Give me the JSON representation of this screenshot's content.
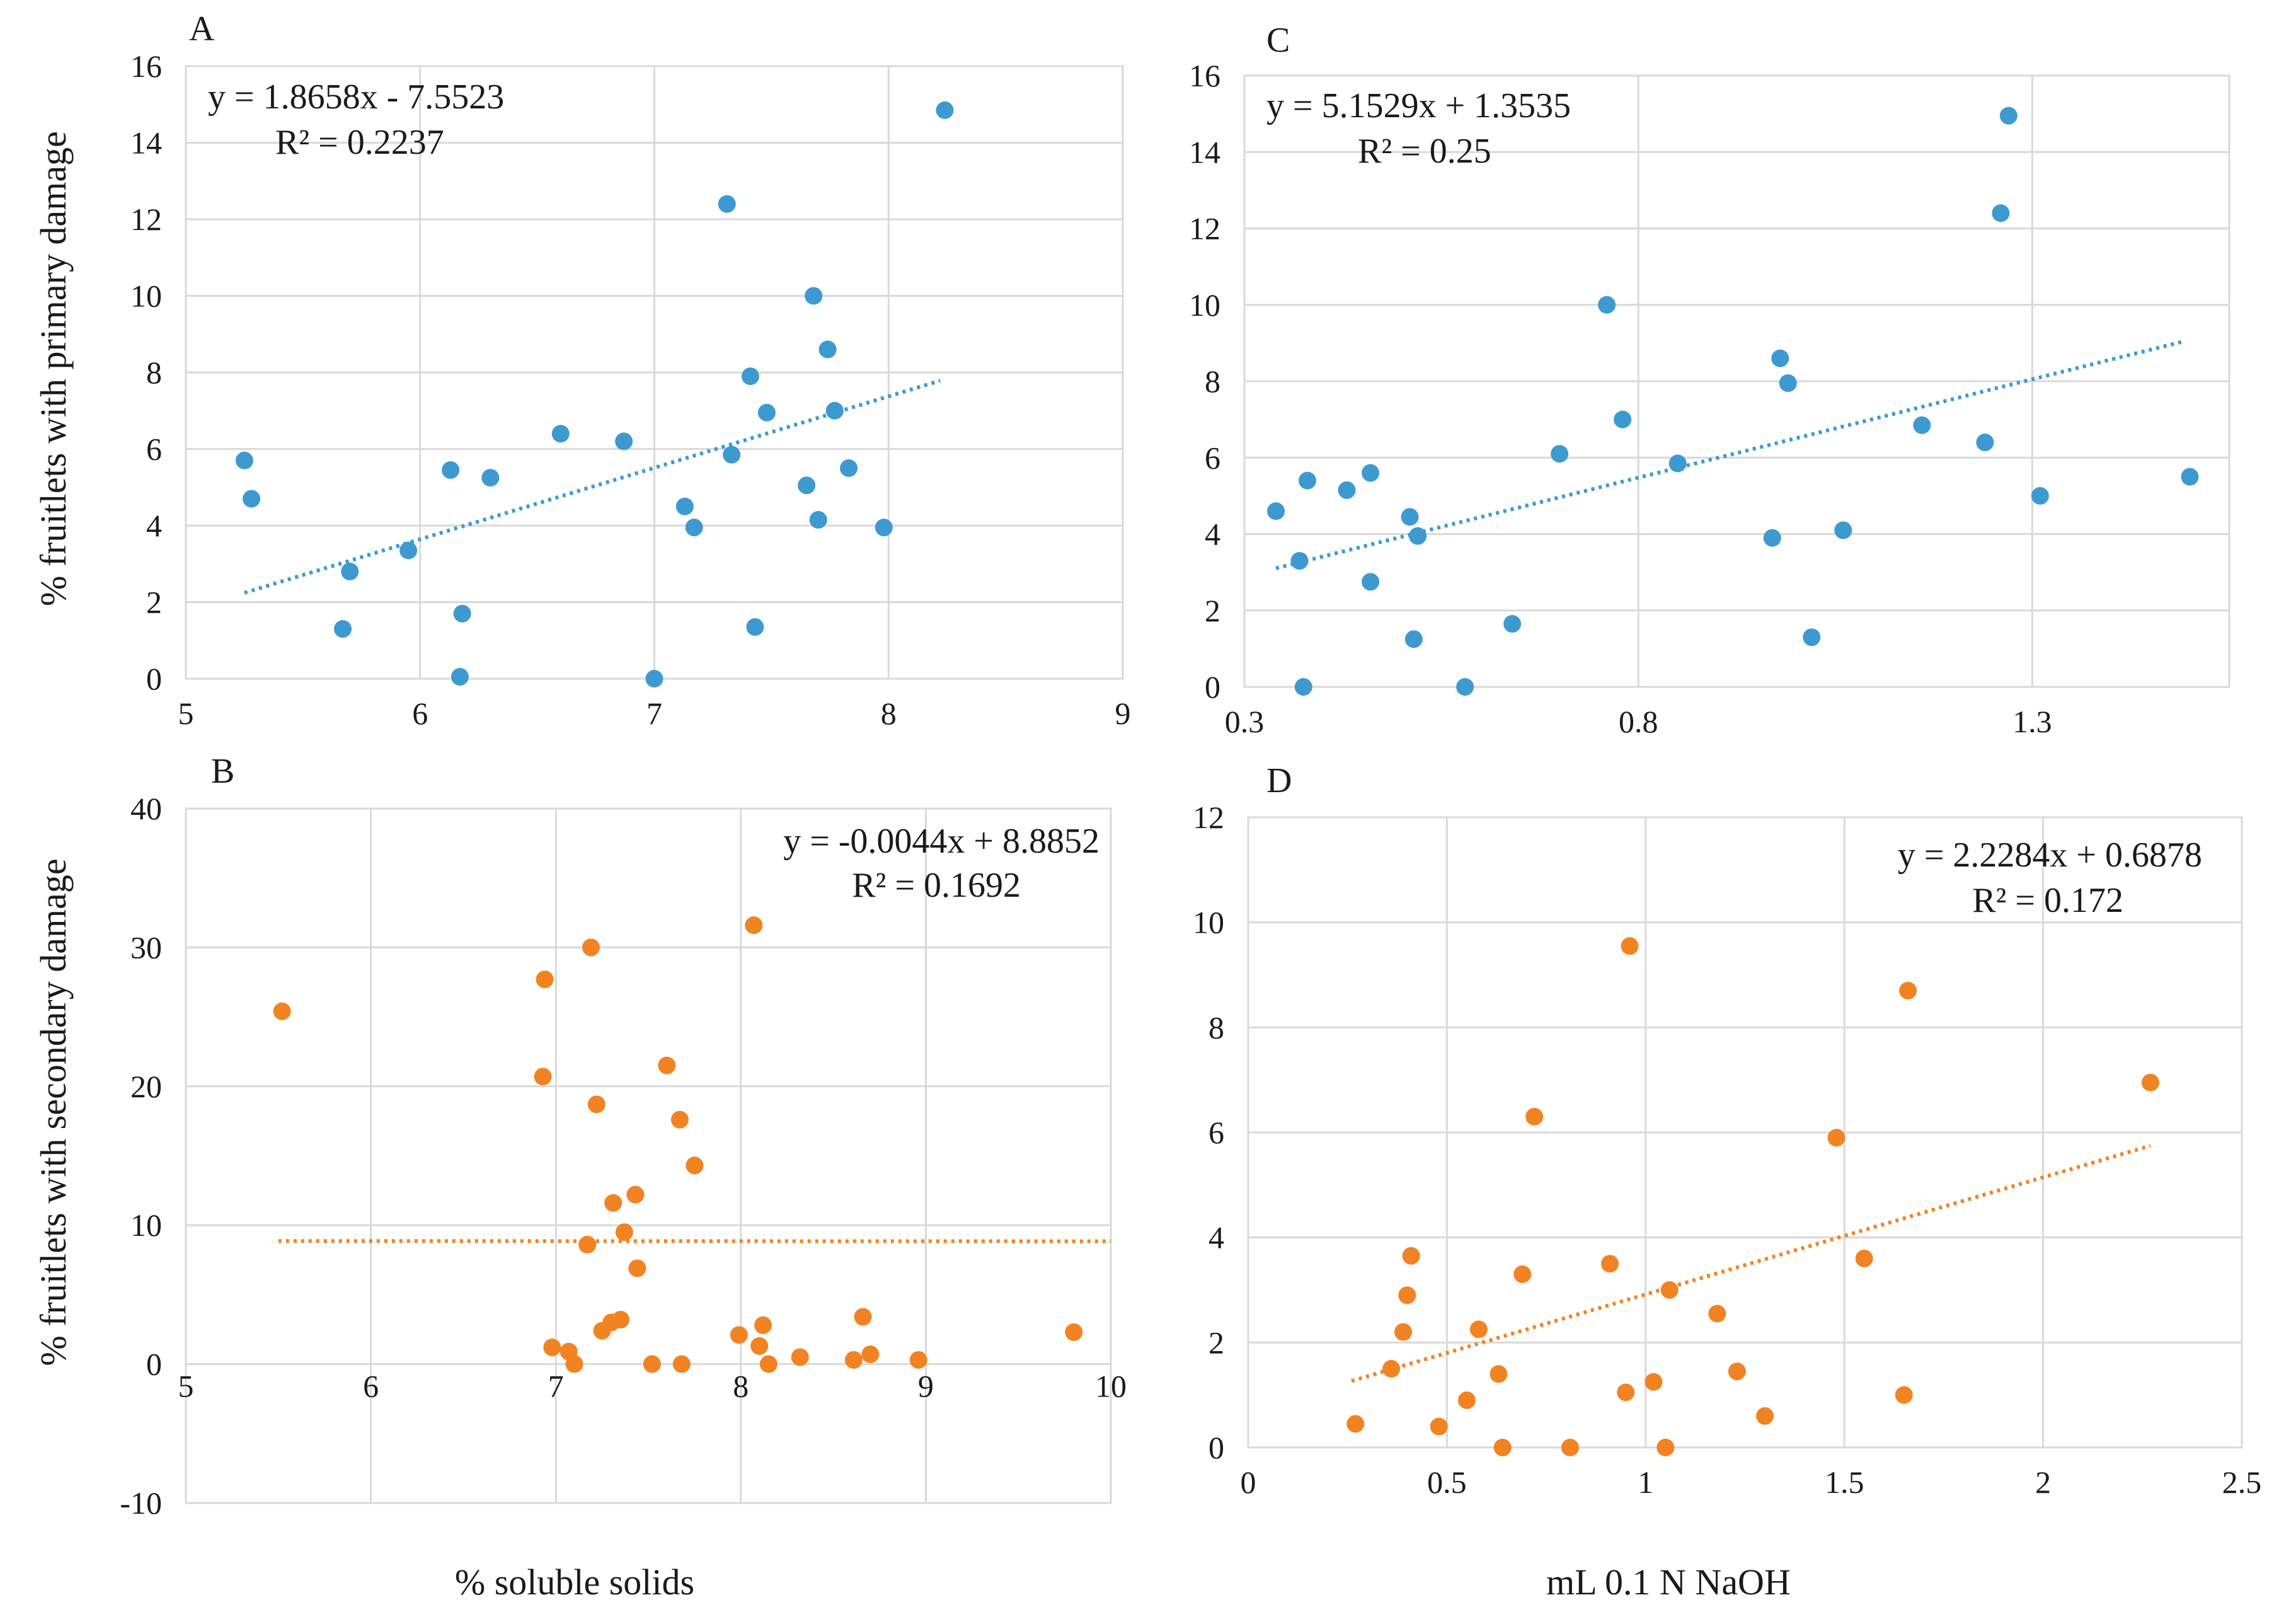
{
  "figure": {
    "ylabel_top": "% fruitlets  with  primary  damage",
    "ylabel_bottom": "% fruitlets  with  secondary  damage",
    "xlabel_left": "% soluble  solids",
    "xlabel_right": "mL  0.1 N NaOH"
  },
  "chart_data": [
    {
      "id": "A",
      "label": "A",
      "type": "scatter",
      "color": "#3d9ad1",
      "xlim": [
        5,
        9
      ],
      "ylim": [
        0,
        16
      ],
      "xticks": [
        5,
        6,
        7,
        8,
        9
      ],
      "yticks": [
        0,
        2,
        4,
        6,
        8,
        10,
        12,
        14,
        16
      ],
      "xticklabels": [
        "5",
        "6",
        "7",
        "8",
        "9"
      ],
      "yticklabels": [
        "0",
        "2",
        "4",
        "6",
        "8",
        "10",
        "12",
        "14",
        "16"
      ],
      "equation": "y = 1.8658x - 7.5523",
      "r2": "R² = 0.2237",
      "trend": {
        "slope": 1.8658,
        "intercept": -7.5523,
        "x_range": [
          5.25,
          8.22
        ]
      },
      "points": [
        [
          5.25,
          5.7
        ],
        [
          5.28,
          4.7
        ],
        [
          5.67,
          1.3
        ],
        [
          5.7,
          2.8
        ],
        [
          5.95,
          3.35
        ],
        [
          6.13,
          5.45
        ],
        [
          6.17,
          0.05
        ],
        [
          6.18,
          1.7
        ],
        [
          6.3,
          5.25
        ],
        [
          6.6,
          6.4
        ],
        [
          6.87,
          6.2
        ],
        [
          7.0,
          0.0
        ],
        [
          7.13,
          4.5
        ],
        [
          7.17,
          3.95
        ],
        [
          7.31,
          12.4
        ],
        [
          7.33,
          5.85
        ],
        [
          7.41,
          7.9
        ],
        [
          7.43,
          1.35
        ],
        [
          7.48,
          6.95
        ],
        [
          7.65,
          5.05
        ],
        [
          7.68,
          10.0
        ],
        [
          7.7,
          4.15
        ],
        [
          7.74,
          8.6
        ],
        [
          7.77,
          7.0
        ],
        [
          7.83,
          5.5
        ],
        [
          7.98,
          3.95
        ],
        [
          8.24,
          14.85
        ]
      ]
    },
    {
      "id": "C",
      "label": "C",
      "type": "scatter",
      "color": "#3d9ad1",
      "xlim": [
        0.3,
        1.55
      ],
      "ylim": [
        0,
        16
      ],
      "xticks": [
        0.3,
        0.8,
        1.3
      ],
      "yticks": [
        0,
        2,
        4,
        6,
        8,
        10,
        12,
        14,
        16
      ],
      "xticklabels": [
        "0.3",
        "0.8",
        "1.3"
      ],
      "yticklabels": [
        "0",
        "2",
        "4",
        "6",
        "8",
        "10",
        "12",
        "14",
        "16"
      ],
      "equation": "y = 5.1529x + 1.3535",
      "r2": "R² = 0.25",
      "trend": {
        "slope": 5.1529,
        "intercept": 1.3535,
        "x_range": [
          0.34,
          1.49
        ]
      },
      "points": [
        [
          0.34,
          4.6
        ],
        [
          0.37,
          3.3
        ],
        [
          0.375,
          0.0
        ],
        [
          0.38,
          5.4
        ],
        [
          0.43,
          5.15
        ],
        [
          0.46,
          2.75
        ],
        [
          0.46,
          5.6
        ],
        [
          0.51,
          4.45
        ],
        [
          0.515,
          1.25
        ],
        [
          0.52,
          3.95
        ],
        [
          0.58,
          0.0
        ],
        [
          0.64,
          1.65
        ],
        [
          0.7,
          6.1
        ],
        [
          0.76,
          10.0
        ],
        [
          0.78,
          7.0
        ],
        [
          0.85,
          5.85
        ],
        [
          0.97,
          3.9
        ],
        [
          0.98,
          8.6
        ],
        [
          0.99,
          7.95
        ],
        [
          1.02,
          1.3
        ],
        [
          1.06,
          4.1
        ],
        [
          1.16,
          6.85
        ],
        [
          1.24,
          6.4
        ],
        [
          1.26,
          12.4
        ],
        [
          1.27,
          14.95
        ],
        [
          1.31,
          5.0
        ],
        [
          1.5,
          5.5
        ]
      ]
    },
    {
      "id": "B",
      "label": "B",
      "type": "scatter",
      "color": "#f28322",
      "xlim": [
        5,
        10
      ],
      "ylim": [
        -10,
        40
      ],
      "xticks": [
        5,
        6,
        7,
        8,
        9,
        10
      ],
      "yticks": [
        -10,
        0,
        10,
        20,
        30,
        40
      ],
      "xticklabels": [
        "5",
        "6",
        "7",
        "8",
        "9",
        "10"
      ],
      "yticklabels": [
        "-10",
        "0",
        "10",
        "20",
        "30",
        "40"
      ],
      "equation": "y = -0.0044x + 8.8852",
      "r2": "R² = 0.1692",
      "trend": {
        "slope": -0.0044,
        "intercept": 8.8852,
        "x_range": [
          5.5,
          10
        ]
      },
      "points": [
        [
          5.52,
          25.4
        ],
        [
          6.93,
          20.7
        ],
        [
          6.94,
          27.7
        ],
        [
          6.98,
          1.2
        ],
        [
          7.07,
          0.9
        ],
        [
          7.1,
          0.0
        ],
        [
          7.17,
          8.6
        ],
        [
          7.19,
          30.0
        ],
        [
          7.22,
          18.7
        ],
        [
          7.25,
          2.4
        ],
        [
          7.3,
          3.0
        ],
        [
          7.31,
          11.6
        ],
        [
          7.35,
          3.2
        ],
        [
          7.37,
          9.5
        ],
        [
          7.43,
          12.2
        ],
        [
          7.44,
          6.9
        ],
        [
          7.52,
          0.0
        ],
        [
          7.6,
          21.5
        ],
        [
          7.67,
          17.6
        ],
        [
          7.68,
          0.0
        ],
        [
          7.75,
          14.3
        ],
        [
          7.99,
          2.1
        ],
        [
          8.07,
          31.6
        ],
        [
          8.1,
          1.3
        ],
        [
          8.12,
          2.8
        ],
        [
          8.15,
          0.0
        ],
        [
          8.32,
          0.5
        ],
        [
          8.61,
          0.3
        ],
        [
          8.66,
          3.4
        ],
        [
          8.7,
          0.7
        ],
        [
          8.96,
          0.3
        ],
        [
          9.8,
          2.3
        ]
      ]
    },
    {
      "id": "D",
      "label": "D",
      "type": "scatter",
      "color": "#f28322",
      "xlim": [
        0,
        2.5
      ],
      "ylim": [
        0,
        12
      ],
      "xticks": [
        0,
        0.5,
        1,
        1.5,
        2,
        2.5
      ],
      "yticks": [
        0,
        2,
        4,
        6,
        8,
        10,
        12
      ],
      "xticklabels": [
        "0",
        "0.5",
        "1",
        "1.5",
        "2",
        "2.5"
      ],
      "yticklabels": [
        "0",
        "2",
        "4",
        "6",
        "8",
        "10",
        "12"
      ],
      "equation": "y = 2.2284x + 0.6878",
      "r2": "R² = 0.172",
      "trend": {
        "slope": 2.2284,
        "intercept": 0.6878,
        "x_range": [
          0.26,
          2.27
        ]
      },
      "points": [
        [
          0.27,
          0.45
        ],
        [
          0.36,
          1.5
        ],
        [
          0.39,
          2.2
        ],
        [
          0.4,
          2.9
        ],
        [
          0.41,
          3.65
        ],
        [
          0.48,
          0.4
        ],
        [
          0.55,
          0.9
        ],
        [
          0.58,
          2.25
        ],
        [
          0.63,
          1.4
        ],
        [
          0.64,
          0.0
        ],
        [
          0.69,
          3.3
        ],
        [
          0.72,
          6.3
        ],
        [
          0.81,
          0.0
        ],
        [
          0.91,
          3.5
        ],
        [
          0.95,
          1.05
        ],
        [
          0.96,
          9.55
        ],
        [
          1.02,
          1.25
        ],
        [
          1.05,
          0.0
        ],
        [
          1.06,
          3.0
        ],
        [
          1.18,
          2.55
        ],
        [
          1.23,
          1.45
        ],
        [
          1.3,
          0.6
        ],
        [
          1.48,
          5.9
        ],
        [
          1.55,
          3.6
        ],
        [
          1.65,
          1.0
        ],
        [
          1.66,
          8.7
        ],
        [
          2.27,
          6.95
        ]
      ]
    }
  ]
}
